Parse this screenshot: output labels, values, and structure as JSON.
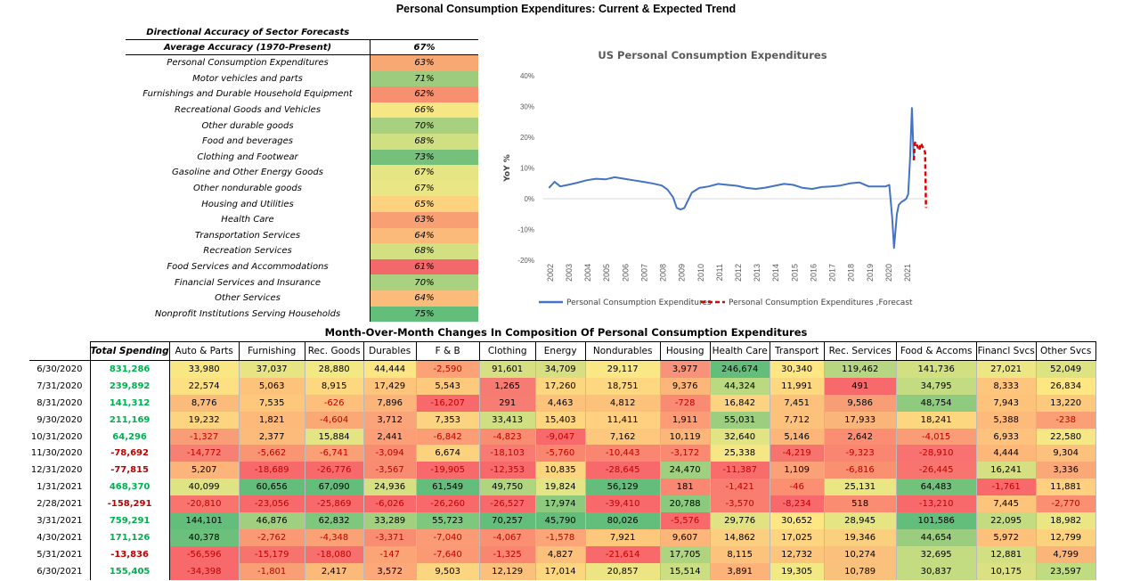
{
  "title": "Personal Consumption Expenditures: Current & Expected Trend",
  "accuracy_table": {
    "title": "Directional Accuracy of Sector Forecasts",
    "header_label": "Average Accuracy (1970-Present)",
    "header_value": "67%",
    "rows": [
      {
        "label": "Personal Consumption Expenditures",
        "value": "63%",
        "color": "#f8a873"
      },
      {
        "label": "Motor vehicles and parts",
        "value": "71%",
        "color": "#9dcc7e"
      },
      {
        "label": "Furnishings and Durable Household Equipment",
        "value": "62%",
        "color": "#f6906f"
      },
      {
        "label": "Recreational Goods and Vehicles",
        "value": "66%",
        "color": "#f6e784"
      },
      {
        "label": "Other durable goods",
        "value": "70%",
        "color": "#a8d07f"
      },
      {
        "label": "Food and beverages",
        "value": "68%",
        "color": "#d0df82"
      },
      {
        "label": "Clothing and Footwear",
        "value": "73%",
        "color": "#75c07b"
      },
      {
        "label": "Gasoline and Other Energy Goods",
        "value": "67%",
        "color": "#e6e584"
      },
      {
        "label": "Other nondurable goods",
        "value": "67%",
        "color": "#eae684"
      },
      {
        "label": "Housing and Utilities",
        "value": "65%",
        "color": "#fcd27f"
      },
      {
        "label": "Health Care",
        "value": "63%",
        "color": "#f8a073"
      },
      {
        "label": "Transportation Services",
        "value": "64%",
        "color": "#fbb97a"
      },
      {
        "label": "Recreation Services",
        "value": "68%",
        "color": "#d3e082"
      },
      {
        "label": "Food Services and Accommodations",
        "value": "61%",
        "color": "#f3696b"
      },
      {
        "label": "Financial Services and Insurance",
        "value": "70%",
        "color": "#a9d17f"
      },
      {
        "label": "Other Services",
        "value": "64%",
        "color": "#fbbc7b"
      },
      {
        "label": "Nonprofit Institutions Serving Households",
        "value": "75%",
        "color": "#63be7b"
      }
    ]
  },
  "chart_data": {
    "type": "line",
    "title": "US Personal Consumption Expenditures",
    "ylabel": "YoY %",
    "xlabel": "",
    "ylim": [
      -20,
      40
    ],
    "yticks": [
      "40%",
      "30%",
      "20%",
      "10%",
      "0%",
      "-10%",
      "-20%"
    ],
    "x_ticks": [
      "2002",
      "2003",
      "2004",
      "2005",
      "2006",
      "2007",
      "2008",
      "2009",
      "2010",
      "2011",
      "2012",
      "2013",
      "2014",
      "2015",
      "2016",
      "2017",
      "2018",
      "2019",
      "2020",
      "2021"
    ],
    "legend_position": "bottom",
    "series": [
      {
        "name": "Personal Consumption Expenditures",
        "color": "#4472c4",
        "style": "solid",
        "x": [
          2002.0,
          2002.3,
          2002.6,
          2003.0,
          2003.5,
          2004.0,
          2004.5,
          2005.0,
          2005.5,
          2006.0,
          2006.5,
          2007.0,
          2007.5,
          2008.0,
          2008.3,
          2008.6,
          2008.8,
          2009.0,
          2009.2,
          2009.4,
          2009.6,
          2010.0,
          2010.5,
          2011.0,
          2011.5,
          2012.0,
          2012.5,
          2013.0,
          2013.5,
          2014.0,
          2014.5,
          2015.0,
          2015.5,
          2016.0,
          2016.5,
          2017.0,
          2017.5,
          2018.0,
          2018.5,
          2019.0,
          2019.5,
          2019.9,
          2020.1,
          2020.25,
          2020.35,
          2020.5,
          2020.6,
          2020.75,
          2020.9,
          2021.0,
          2021.1,
          2021.2,
          2021.3,
          2021.4
        ],
        "y": [
          3.5,
          5.5,
          4.0,
          4.5,
          5.2,
          6.0,
          6.5,
          6.3,
          7.0,
          6.5,
          6.0,
          5.5,
          5.0,
          4.3,
          3.0,
          0.5,
          -3.0,
          -3.5,
          -3.0,
          -0.5,
          2.0,
          3.5,
          4.0,
          4.8,
          4.5,
          4.2,
          3.5,
          3.2,
          3.6,
          4.2,
          4.8,
          4.5,
          3.5,
          3.2,
          3.8,
          4.0,
          4.3,
          5.0,
          5.3,
          4.0,
          4.0,
          4.0,
          4.5,
          -6.0,
          -16.0,
          -5.0,
          -2.0,
          -1.0,
          -0.5,
          0.0,
          1.5,
          13.0,
          29.5,
          12.5
        ]
      },
      {
        "name": "Personal Consumption Expenditures ,Forecast",
        "color": "#e00000",
        "style": "dashed",
        "x": [
          2021.4,
          2021.45,
          2021.5,
          2021.55,
          2021.6,
          2021.65,
          2021.7,
          2021.75,
          2021.8,
          2021.85,
          2021.9,
          2021.95,
          2022.0,
          2022.02,
          2022.05
        ],
        "y": [
          12.5,
          18.0,
          18.5,
          17.5,
          17.0,
          16.0,
          15.8,
          17.5,
          18.0,
          17.0,
          16.5,
          16.2,
          15.0,
          8.0,
          -3.0
        ]
      }
    ]
  },
  "components_table": {
    "title": "Month-Over-Month Changes In Composition Of Personal Consumption Expenditures",
    "headers": [
      "Total Spending",
      "Auto & Parts",
      "Furnishing",
      "Rec. Goods",
      "Durables",
      "F & B",
      "Clothing",
      "Energy",
      "Nondurables",
      "Housing",
      "Health Care",
      "Transport",
      "Rec. Services",
      "Food & Accoms",
      "Financl Svcs",
      "Other Svcs"
    ],
    "rows": [
      {
        "date": "6/30/2020",
        "values": [
          "831,286",
          "33,980",
          "37,037",
          "28,880",
          "44,444",
          "-2,590",
          "91,601",
          "34,709",
          "29,117",
          "3,977",
          "246,674",
          "30,340",
          "119,462",
          "141,736",
          "27,021",
          "52,049"
        ],
        "neg": [
          false,
          false,
          false,
          false,
          false,
          true,
          false,
          false,
          false,
          false,
          false,
          false,
          false,
          false,
          false,
          false
        ],
        "colors": [
          "",
          "#f9e784",
          "#e7e483",
          "#f2e884",
          "#fce583",
          "#fba376",
          "#d6e082",
          "#d8df82",
          "#fae785",
          "#f9927a",
          "#63be7b",
          "#fee783",
          "#b6d681",
          "#d3e082",
          "#ede684",
          "#dde282"
        ]
      },
      {
        "date": "7/31/2020",
        "values": [
          "239,892",
          "22,574",
          "5,063",
          "8,915",
          "17,429",
          "5,543",
          "1,265",
          "17,260",
          "18,751",
          "9,376",
          "44,324",
          "11,991",
          "491",
          "34,795",
          "8,333",
          "26,834"
        ],
        "neg": [
          false,
          false,
          false,
          false,
          false,
          false,
          false,
          false,
          false,
          false,
          false,
          false,
          false,
          false,
          false,
          false
        ],
        "colors": [
          "",
          "#fde082",
          "#fec37a",
          "#fdd87f",
          "#fcc57b",
          "#fdca7d",
          "#f67b73",
          "#fdd680",
          "#fed880",
          "#fcb679",
          "#bbd981",
          "#fed781",
          "#f8696b",
          "#c4dc81",
          "#fec57c",
          "#fee683"
        ]
      },
      {
        "date": "8/31/2020",
        "values": [
          "141,312",
          "8,776",
          "7,535",
          "-626",
          "7,896",
          "-16,207",
          "291",
          "4,463",
          "4,812",
          "-728",
          "16,842",
          "7,451",
          "9,586",
          "48,754",
          "7,943",
          "13,220"
        ],
        "neg": [
          false,
          false,
          false,
          true,
          false,
          true,
          false,
          false,
          false,
          true,
          false,
          false,
          false,
          false,
          false,
          false
        ],
        "colors": [
          "",
          "#fbbc7b",
          "#fec87c",
          "#fcc07c",
          "#fbb47a",
          "#f8696b",
          "#f77c73",
          "#fcc27c",
          "#fcc27c",
          "#f98b72",
          "#fcd381",
          "#fcc27c",
          "#f89e76",
          "#8fca7e",
          "#fec37b",
          "#fdc97d"
        ]
      },
      {
        "date": "9/30/2020",
        "values": [
          "211,169",
          "19,232",
          "1,821",
          "-4,604",
          "3,712",
          "7,353",
          "33,413",
          "15,403",
          "11,411",
          "1,911",
          "55,031",
          "7,712",
          "17,933",
          "18,241",
          "5,388",
          "-238"
        ],
        "neg": [
          false,
          false,
          false,
          true,
          false,
          false,
          false,
          false,
          false,
          false,
          false,
          false,
          false,
          false,
          false,
          true
        ],
        "colors": [
          "",
          "#fdd480",
          "#fcb97a",
          "#fba877",
          "#fca479",
          "#fcd380",
          "#d0df82",
          "#fed680",
          "#fed07f",
          "#fb9c76",
          "#9dce7f",
          "#fcc27c",
          "#fab67a",
          "#fdd680",
          "#fdba7a",
          "#fb9f76"
        ]
      },
      {
        "date": "10/31/2020",
        "values": [
          "64,296",
          "-1,327",
          "2,377",
          "15,884",
          "2,441",
          "-6,842",
          "-4,823",
          "-9,047",
          "7,162",
          "10,119",
          "32,640",
          "5,146",
          "2,642",
          "-4,015",
          "6,933",
          "22,580"
        ],
        "neg": [
          false,
          true,
          false,
          false,
          false,
          true,
          true,
          true,
          false,
          false,
          false,
          false,
          false,
          true,
          false,
          false
        ],
        "colors": [
          "",
          "#f99d76",
          "#fcbb7b",
          "#e5e484",
          "#fc9f77",
          "#fb9e76",
          "#f98d71",
          "#f8696b",
          "#fdc87d",
          "#fcb679",
          "#e2e383",
          "#fcb679",
          "#fa8d72",
          "#fa9c76",
          "#fec27c",
          "#f6e784"
        ]
      },
      {
        "date": "11/30/2020",
        "values": [
          "-78,692",
          "-14,772",
          "-5,662",
          "-6,741",
          "-3,094",
          "6,674",
          "-18,103",
          "-5,760",
          "-10,443",
          "-3,172",
          "25,338",
          "-4,219",
          "-9,323",
          "-28,910",
          "4,444",
          "9,304"
        ],
        "neg": [
          true,
          true,
          true,
          true,
          true,
          false,
          true,
          true,
          true,
          true,
          false,
          true,
          true,
          true,
          false,
          false
        ],
        "colors": [
          "",
          "#f77f73",
          "#fa9574",
          "#fb9f76",
          "#f98d72",
          "#fdd27f",
          "#f77b72",
          "#f9876f",
          "#f98671",
          "#f98a71",
          "#f6e684",
          "#f7736e",
          "#f98671",
          "#f77271",
          "#fcb779",
          "#fcc17c"
        ]
      },
      {
        "date": "12/31/2020",
        "values": [
          "-77,815",
          "5,207",
          "-18,689",
          "-26,776",
          "-3,567",
          "-19,905",
          "-12,353",
          "10,835",
          "-28,645",
          "24,470",
          "-11,387",
          "1,109",
          "-6,816",
          "-26,445",
          "16,241",
          "3,336"
        ],
        "neg": [
          true,
          false,
          true,
          true,
          true,
          true,
          true,
          false,
          true,
          false,
          true,
          false,
          true,
          true,
          false,
          false
        ],
        "colors": [
          "",
          "#fcb47a",
          "#f8696b",
          "#f8696b",
          "#f98b71",
          "#f8696b",
          "#f8696b",
          "#fcd580",
          "#f8696b",
          "#a0cf7f",
          "#f86c6c",
          "#fba177",
          "#f9906f",
          "#f8746f",
          "#d6e082",
          "#fba878"
        ]
      },
      {
        "date": "1/31/2021",
        "values": [
          "468,370",
          "40,099",
          "60,656",
          "67,090",
          "24,936",
          "61,549",
          "49,750",
          "19,824",
          "56,129",
          "181",
          "-1,421",
          "-46",
          "25,131",
          "64,483",
          "-1,761",
          "11,881"
        ],
        "neg": [
          false,
          false,
          false,
          false,
          false,
          false,
          false,
          false,
          false,
          false,
          true,
          true,
          false,
          false,
          true,
          false
        ],
        "colors": [
          "",
          "#e0e383",
          "#63be7b",
          "#63be7b",
          "#d6e082",
          "#63be7b",
          "#b0d57f",
          "#e3e584",
          "#63be7b",
          "#fa8771",
          "#f97d70",
          "#fa8f72",
          "#ebe684",
          "#72c27c",
          "#f8696b",
          "#fed07f"
        ]
      },
      {
        "date": "2/28/2021",
        "values": [
          "-158,291",
          "-20,810",
          "-23,056",
          "-25,869",
          "-6,026",
          "-26,260",
          "-26,527",
          "17,974",
          "-39,410",
          "20,788",
          "-3,570",
          "-8,234",
          "518",
          "-13,210",
          "7,445",
          "-2,770"
        ],
        "neg": [
          true,
          true,
          true,
          true,
          true,
          true,
          true,
          false,
          true,
          false,
          true,
          true,
          false,
          true,
          false,
          true
        ],
        "colors": [
          "",
          "#f8746d",
          "#f8696b",
          "#f8696b",
          "#f8696b",
          "#f8696b",
          "#f8696b",
          "#8dca7e",
          "#f8696b",
          "#8ac97e",
          "#f97e70",
          "#f8696b",
          "#fa8c72",
          "#f8696b",
          "#fcc57b",
          "#fa8f72"
        ]
      },
      {
        "date": "3/31/2021",
        "values": [
          "759,291",
          "144,101",
          "46,876",
          "62,832",
          "33,289",
          "55,723",
          "70,257",
          "45,790",
          "80,026",
          "-5,576",
          "29,776",
          "30,652",
          "28,945",
          "101,586",
          "22,095",
          "18,982"
        ],
        "neg": [
          false,
          false,
          false,
          false,
          false,
          false,
          false,
          false,
          false,
          true,
          false,
          false,
          false,
          false,
          false,
          false
        ],
        "colors": [
          "",
          "#63be7b",
          "#9fcf7f",
          "#7ec87e",
          "#a3d07f",
          "#7ec87e",
          "#63be7b",
          "#63be7b",
          "#63be7b",
          "#f8696b",
          "#e1e383",
          "#fee683",
          "#e5e584",
          "#63be7b",
          "#c4dc81",
          "#ebe684"
        ]
      },
      {
        "date": "4/30/2021",
        "values": [
          "171,126",
          "40,378",
          "-2,762",
          "-4,348",
          "-3,371",
          "-7,040",
          "-4,067",
          "-1,578",
          "7,921",
          "9,607",
          "14,862",
          "17,025",
          "19,346",
          "44,654",
          "5,972",
          "12,799"
        ],
        "neg": [
          false,
          false,
          true,
          true,
          true,
          true,
          true,
          true,
          false,
          false,
          false,
          false,
          false,
          false,
          false,
          false
        ],
        "colors": [
          "",
          "#6bc07c",
          "#fa9a75",
          "#fba176",
          "#f98d72",
          "#fa9b76",
          "#fa8f72",
          "#fba578",
          "#fec87c",
          "#fcb679",
          "#fbce80",
          "#fdd580",
          "#fad07f",
          "#9ccd7f",
          "#fdc17c",
          "#fdd27f"
        ]
      },
      {
        "date": "5/31/2021",
        "values": [
          "-13,836",
          "-56,596",
          "-15,179",
          "-18,080",
          "-147",
          "-7,640",
          "-1,325",
          "4,827",
          "-21,614",
          "17,705",
          "8,115",
          "12,732",
          "10,274",
          "32,695",
          "12,881",
          "4,799"
        ],
        "neg": [
          true,
          true,
          true,
          true,
          true,
          true,
          true,
          false,
          true,
          false,
          false,
          false,
          false,
          false,
          false,
          false
        ],
        "colors": [
          "",
          "#f8696b",
          "#f7746e",
          "#f8706e",
          "#fba577",
          "#fa9974",
          "#f98671",
          "#fdc07c",
          "#f8696b",
          "#afd480",
          "#fcc37c",
          "#fdc47c",
          "#fac07c",
          "#c4dc81",
          "#d2e082",
          "#fcb579"
        ]
      },
      {
        "date": "6/30/2021",
        "values": [
          "155,405",
          "-34,398",
          "-1,801",
          "2,417",
          "3,572",
          "9,503",
          "12,129",
          "17,014",
          "20,857",
          "15,514",
          "3,891",
          "19,305",
          "10,789",
          "30,837",
          "10,175",
          "23,597"
        ],
        "neg": [
          false,
          true,
          true,
          false,
          false,
          false,
          false,
          false,
          false,
          false,
          false,
          false,
          false,
          false,
          false,
          false
        ],
        "colors": [
          "",
          "#f8696b",
          "#fa9e76",
          "#fcba7a",
          "#fca879",
          "#fcd580",
          "#fac07c",
          "#fdd680",
          "#ede484",
          "#cbde82",
          "#fcb279",
          "#f2e884",
          "#f9c17c",
          "#c4dc81",
          "#dbe182",
          "#c0dc81"
        ]
      }
    ]
  }
}
